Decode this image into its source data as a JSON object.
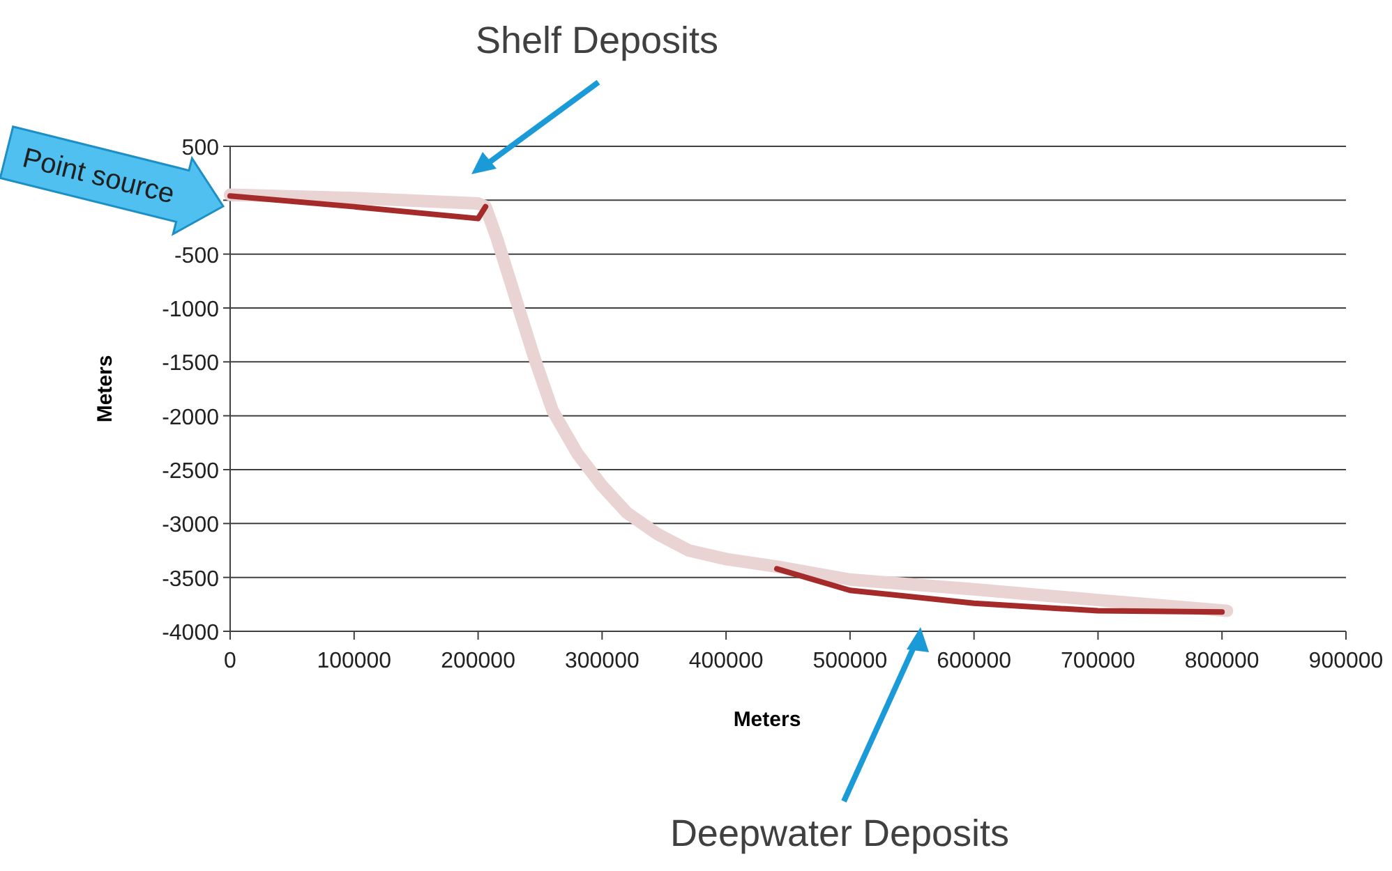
{
  "chart_data": {
    "type": "line",
    "xlabel": "Meters",
    "ylabel": "Meters",
    "xlim": [
      0,
      900000
    ],
    "xticks": [
      0,
      100000,
      200000,
      300000,
      400000,
      500000,
      600000,
      700000,
      800000,
      900000
    ],
    "ylim": [
      -4000,
      500
    ],
    "yticks": [
      500,
      0,
      -500,
      -1000,
      -1500,
      -2000,
      -2500,
      -3000,
      -3500,
      -4000
    ],
    "grid": "y",
    "marker": "none",
    "line_style": "solid",
    "series": [
      {
        "color": "#e9d3d3",
        "x": [
          0,
          100000,
          200000,
          206000,
          215000,
          230000,
          245000,
          260000,
          280000,
          300000,
          320000,
          345000,
          370000,
          400000,
          441000,
          500000,
          600000,
          700000,
          804000
        ],
        "values": [
          50,
          20,
          -30,
          -60,
          -350,
          -900,
          -1450,
          -1950,
          -2350,
          -2650,
          -2900,
          -3100,
          -3250,
          -3330,
          -3400,
          -3520,
          -3610,
          -3710,
          -3810
        ]
      },
      {
        "color": "#a52a2a",
        "x": [
          0,
          100000,
          200000,
          206000
        ],
        "values": [
          40,
          -60,
          -170,
          -60
        ]
      },
      {
        "color": "#a52a2a",
        "x": [
          441000,
          500000,
          600000,
          700000,
          800000
        ],
        "values": [
          -3420,
          -3620,
          -3740,
          -3810,
          -3820
        ]
      }
    ],
    "annotations": [
      "Shelf Deposits",
      "Deepwater Deposits",
      "Point source"
    ]
  }
}
